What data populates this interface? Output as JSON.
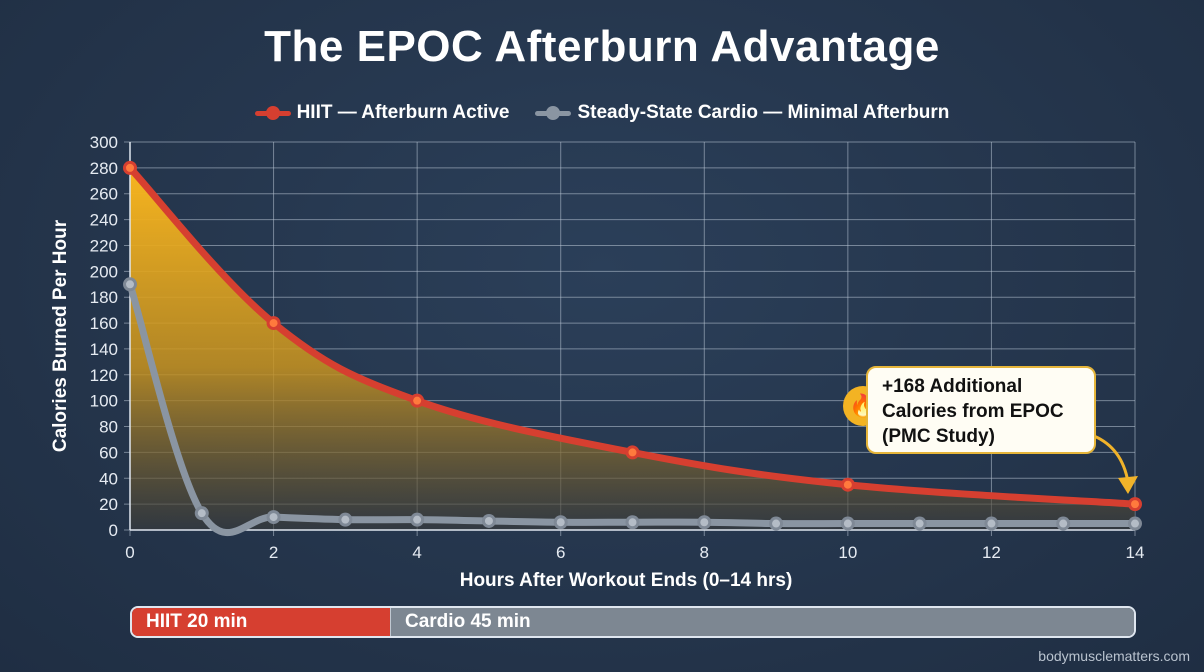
{
  "title": "The EPOC Afterburn Advantage",
  "legend": [
    {
      "label": "HIIT — Afterburn Active",
      "color": "#d63f30"
    },
    {
      "label": "Steady-State Cardio — Minimal Afterburn",
      "color": "#8a95a2"
    }
  ],
  "axes": {
    "ylabel": "Calories Burned Per Hour",
    "xlabel": "Hours After Workout Ends (0–14 hrs)",
    "yticks": [
      "0",
      "20",
      "40",
      "60",
      "80",
      "100",
      "120",
      "140",
      "160",
      "180",
      "200",
      "220",
      "240",
      "260",
      "280",
      "300"
    ],
    "xticks": [
      "0",
      "2",
      "4",
      "6",
      "8",
      "10",
      "12",
      "14"
    ]
  },
  "callout": {
    "icon": "fire-icon",
    "line1": "+168 Additional",
    "line2": "Calories from EPOC",
    "line3": "(PMC Study)"
  },
  "duration_bar": {
    "hiit_label": "HIIT 20 min",
    "cardio_label": "Cardio 45 min"
  },
  "footer": "bodymusclematters.com",
  "chart_data": {
    "type": "line",
    "title": "The EPOC Afterburn Advantage",
    "xlabel": "Hours After Workout Ends (0–14 hrs)",
    "ylabel": "Calories Burned Per Hour",
    "xlim": [
      0,
      14
    ],
    "ylim": [
      0,
      300
    ],
    "grid": true,
    "legend_position": "top",
    "series": [
      {
        "name": "HIIT — Afterburn Active",
        "color": "#d63f30",
        "fill": "#f5b324",
        "x": [
          0,
          2,
          4,
          7,
          10,
          14
        ],
        "values": [
          280,
          160,
          100,
          60,
          35,
          20
        ]
      },
      {
        "name": "Steady-State Cardio — Minimal Afterburn",
        "color": "#8a95a2",
        "x": [
          0,
          1,
          2,
          3,
          4,
          5,
          6,
          7,
          8,
          9,
          10,
          11,
          12,
          13,
          14
        ],
        "values": [
          190,
          13,
          10,
          8,
          8,
          7,
          6,
          6,
          6,
          5,
          5,
          5,
          5,
          5,
          5
        ]
      }
    ],
    "annotations": [
      "+168 Additional Calories from EPOC (PMC Study)"
    ],
    "bottom_bar": [
      {
        "label": "HIIT 20 min",
        "minutes": 20
      },
      {
        "label": "Cardio 45 min",
        "minutes": 45
      }
    ]
  }
}
